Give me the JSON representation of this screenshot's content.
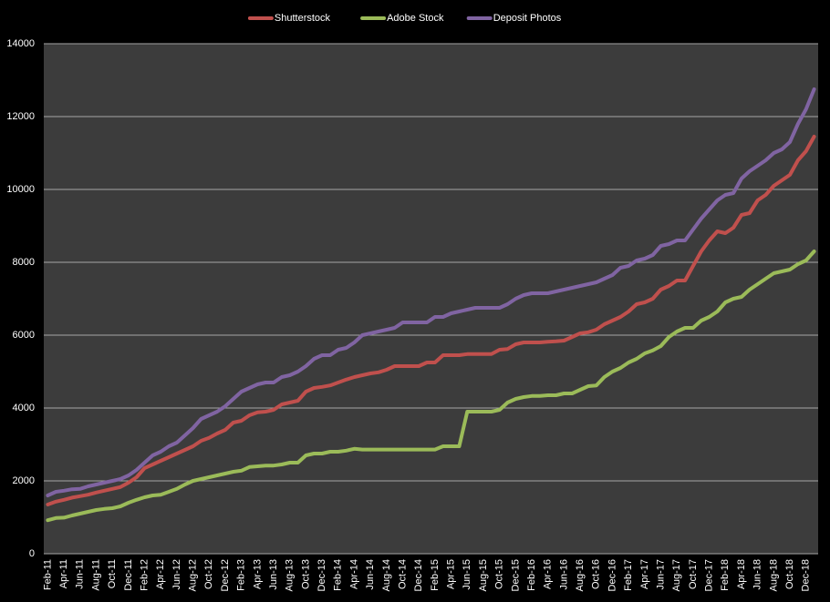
{
  "chart_data": {
    "type": "line",
    "categories": [
      "Feb-11",
      null,
      "Apr-11",
      null,
      "Jun-11",
      null,
      "Aug-11",
      null,
      "Oct-11",
      null,
      "Dec-11",
      null,
      "Feb-12",
      null,
      "Apr-12",
      null,
      "Jun-12",
      null,
      "Aug-12",
      null,
      "Oct-12",
      null,
      "Dec-12",
      null,
      "Feb-13",
      null,
      "Apr-13",
      null,
      "Jun-13",
      null,
      "Aug-13",
      null,
      "Oct-13",
      null,
      "Dec-13",
      null,
      "Feb-14",
      null,
      "Apr-14",
      null,
      "Jun-14",
      null,
      "Aug-14",
      null,
      "Oct-14",
      null,
      "Dec-14",
      null,
      "Feb-15",
      null,
      "Apr-15",
      null,
      "Jun-15",
      null,
      "Aug-15",
      null,
      "Oct-15",
      null,
      "Dec-15",
      null,
      "Feb-16",
      null,
      "Apr-16",
      null,
      "Jun-16",
      null,
      "Aug-16",
      null,
      "Oct-16",
      null,
      "Dec-16",
      null,
      "Feb-17",
      null,
      "Apr-17",
      null,
      "Jun-17",
      null,
      "Aug-17",
      null,
      "Oct-17",
      null,
      "Dec-17",
      null,
      "Feb-18",
      null,
      "Apr-18",
      null,
      "Jun-18",
      null,
      "Aug-18",
      null,
      "Oct-18",
      null,
      "Dec-18",
      null
    ],
    "series": [
      {
        "name": "Shutterstock",
        "color": "#c0504d",
        "values": [
          1350,
          1430,
          1480,
          1540,
          1580,
          1620,
          1680,
          1730,
          1780,
          1830,
          1950,
          2100,
          2350,
          2450,
          2550,
          2650,
          2750,
          2850,
          2950,
          3100,
          3180,
          3300,
          3400,
          3600,
          3650,
          3800,
          3880,
          3900,
          3950,
          4100,
          4150,
          4200,
          4450,
          4550,
          4580,
          4620,
          4700,
          4780,
          4850,
          4900,
          4950,
          4980,
          5050,
          5150,
          5150,
          5150,
          5150,
          5250,
          5250,
          5450,
          5450,
          5450,
          5480,
          5480,
          5480,
          5480,
          5600,
          5620,
          5750,
          5800,
          5800,
          5800,
          5820,
          5830,
          5850,
          5950,
          6050,
          6080,
          6150,
          6300,
          6400,
          6500,
          6650,
          6850,
          6900,
          7000,
          7250,
          7350,
          7500,
          7500,
          7900,
          8300,
          8600,
          8850,
          8800,
          8950,
          9300,
          9350,
          9700,
          9850,
          10100,
          10250,
          10400,
          10800,
          11050,
          11450
        ]
      },
      {
        "name": "Adobe Stock",
        "color": "#9bbb59",
        "values": [
          920,
          980,
          990,
          1050,
          1100,
          1150,
          1200,
          1230,
          1250,
          1300,
          1400,
          1480,
          1550,
          1600,
          1620,
          1700,
          1780,
          1900,
          2000,
          2050,
          2100,
          2150,
          2200,
          2250,
          2280,
          2380,
          2400,
          2420,
          2420,
          2450,
          2500,
          2500,
          2700,
          2750,
          2750,
          2800,
          2800,
          2830,
          2880,
          2860,
          2860,
          2860,
          2860,
          2860,
          2860,
          2860,
          2860,
          2860,
          2860,
          2950,
          2950,
          2950,
          3900,
          3900,
          3900,
          3900,
          3950,
          4150,
          4250,
          4300,
          4330,
          4330,
          4350,
          4350,
          4400,
          4400,
          4500,
          4600,
          4620,
          4850,
          5000,
          5100,
          5250,
          5350,
          5500,
          5580,
          5700,
          5950,
          6100,
          6200,
          6200,
          6400,
          6500,
          6650,
          6900,
          7000,
          7050,
          7250,
          7400,
          7550,
          7700,
          7750,
          7800,
          7950,
          8050,
          8300
        ]
      },
      {
        "name": "Deposit Photos",
        "color": "#8064a2",
        "values": [
          1600,
          1700,
          1730,
          1770,
          1780,
          1850,
          1900,
          1950,
          2000,
          2050,
          2150,
          2300,
          2500,
          2700,
          2800,
          2950,
          3050,
          3250,
          3450,
          3700,
          3800,
          3900,
          4050,
          4250,
          4450,
          4550,
          4650,
          4700,
          4700,
          4850,
          4900,
          5000,
          5150,
          5350,
          5450,
          5450,
          5600,
          5650,
          5800,
          6000,
          6050,
          6100,
          6150,
          6200,
          6350,
          6350,
          6350,
          6350,
          6500,
          6500,
          6600,
          6650,
          6700,
          6750,
          6750,
          6750,
          6750,
          6850,
          7000,
          7100,
          7150,
          7150,
          7150,
          7200,
          7250,
          7300,
          7350,
          7400,
          7450,
          7550,
          7650,
          7850,
          7900,
          8050,
          8100,
          8200,
          8450,
          8500,
          8600,
          8600,
          8900,
          9200,
          9450,
          9700,
          9850,
          9900,
          10300,
          10500,
          10650,
          10800,
          11000,
          11100,
          11300,
          11800,
          12200,
          12750
        ]
      }
    ],
    "ylim": [
      0,
      14000
    ],
    "yticks": [
      0,
      2000,
      4000,
      6000,
      8000,
      10000,
      12000,
      14000
    ],
    "grid": true,
    "legend": "top"
  }
}
